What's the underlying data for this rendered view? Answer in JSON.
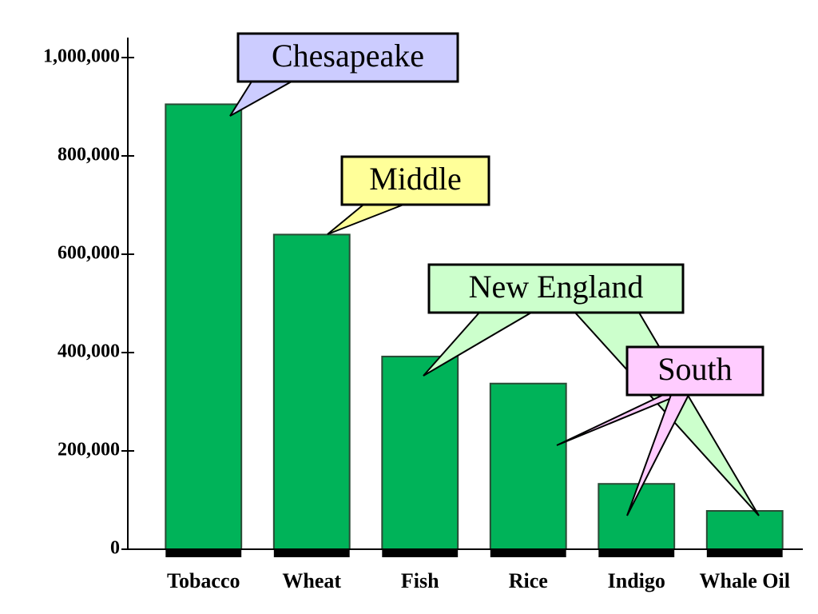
{
  "chart_data": {
    "type": "bar",
    "categories": [
      "Tobacco",
      "Wheat",
      "Fish",
      "Rice",
      "Indigo",
      "Whale Oil"
    ],
    "values": [
      905000,
      640000,
      392000,
      337000,
      133000,
      78000
    ],
    "color": "#00b359",
    "ylim": [
      0,
      1000000
    ],
    "yticks": [
      0,
      {
        "value": 200000,
        "label": "200,000"
      },
      {
        "value": 400000,
        "label": "400,000"
      },
      {
        "value": 600000,
        "label": "600,000"
      },
      {
        "value": 800000,
        "label": "800,000"
      },
      {
        "value": 1000000,
        "label": "1,000,000"
      }
    ],
    "annotations": [
      {
        "text": "Chesapeake",
        "color": "#ccccff"
      },
      {
        "text": "Middle",
        "color": "#ffff99"
      },
      {
        "text": "New England",
        "color": "#ccffcc"
      },
      {
        "text": "South",
        "color": "#ffccff"
      }
    ]
  }
}
